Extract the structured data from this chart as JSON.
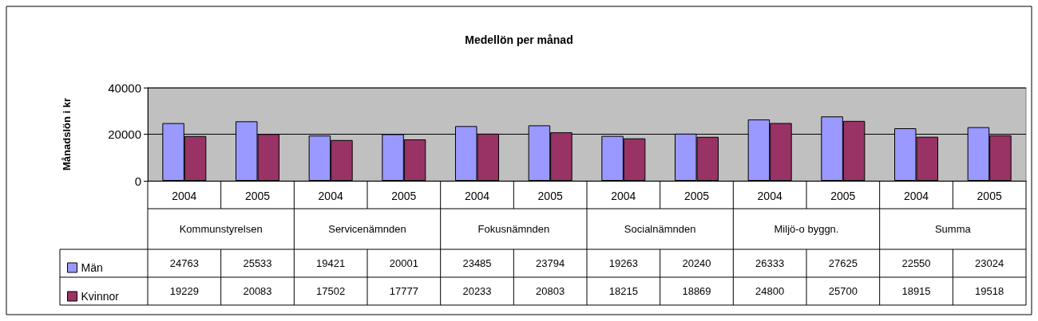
{
  "chart_data": {
    "type": "bar",
    "title": "Medellön per månad",
    "ylabel": "Månadslön i kr",
    "categories": [
      "2004",
      "2005",
      "2004",
      "2005",
      "2004",
      "2005",
      "2004",
      "2005",
      "2004",
      "2005",
      "2004",
      "2005"
    ],
    "annotations": [
      "Kommunstyrelsen",
      "Servicenämnden",
      "Fokusnämnden",
      "Socialnämnden",
      "Miljö-o byggn.",
      "Summa"
    ],
    "series": [
      {
        "name": "Män",
        "color": "#9999ff",
        "values": [
          24763,
          25533,
          19421,
          20001,
          23485,
          23794,
          19263,
          20240,
          26333,
          27625,
          22550,
          23024
        ]
      },
      {
        "name": "Kvinnor",
        "color": "#993366",
        "values": [
          19229,
          20083,
          17502,
          17777,
          20233,
          20803,
          18215,
          18869,
          24800,
          25700,
          18915,
          19518
        ]
      }
    ],
    "ylim": [
      0,
      40000
    ],
    "yticks": [
      0,
      20000,
      40000
    ],
    "grid": "y",
    "legend": "bottom left",
    "data_labels": true
  }
}
